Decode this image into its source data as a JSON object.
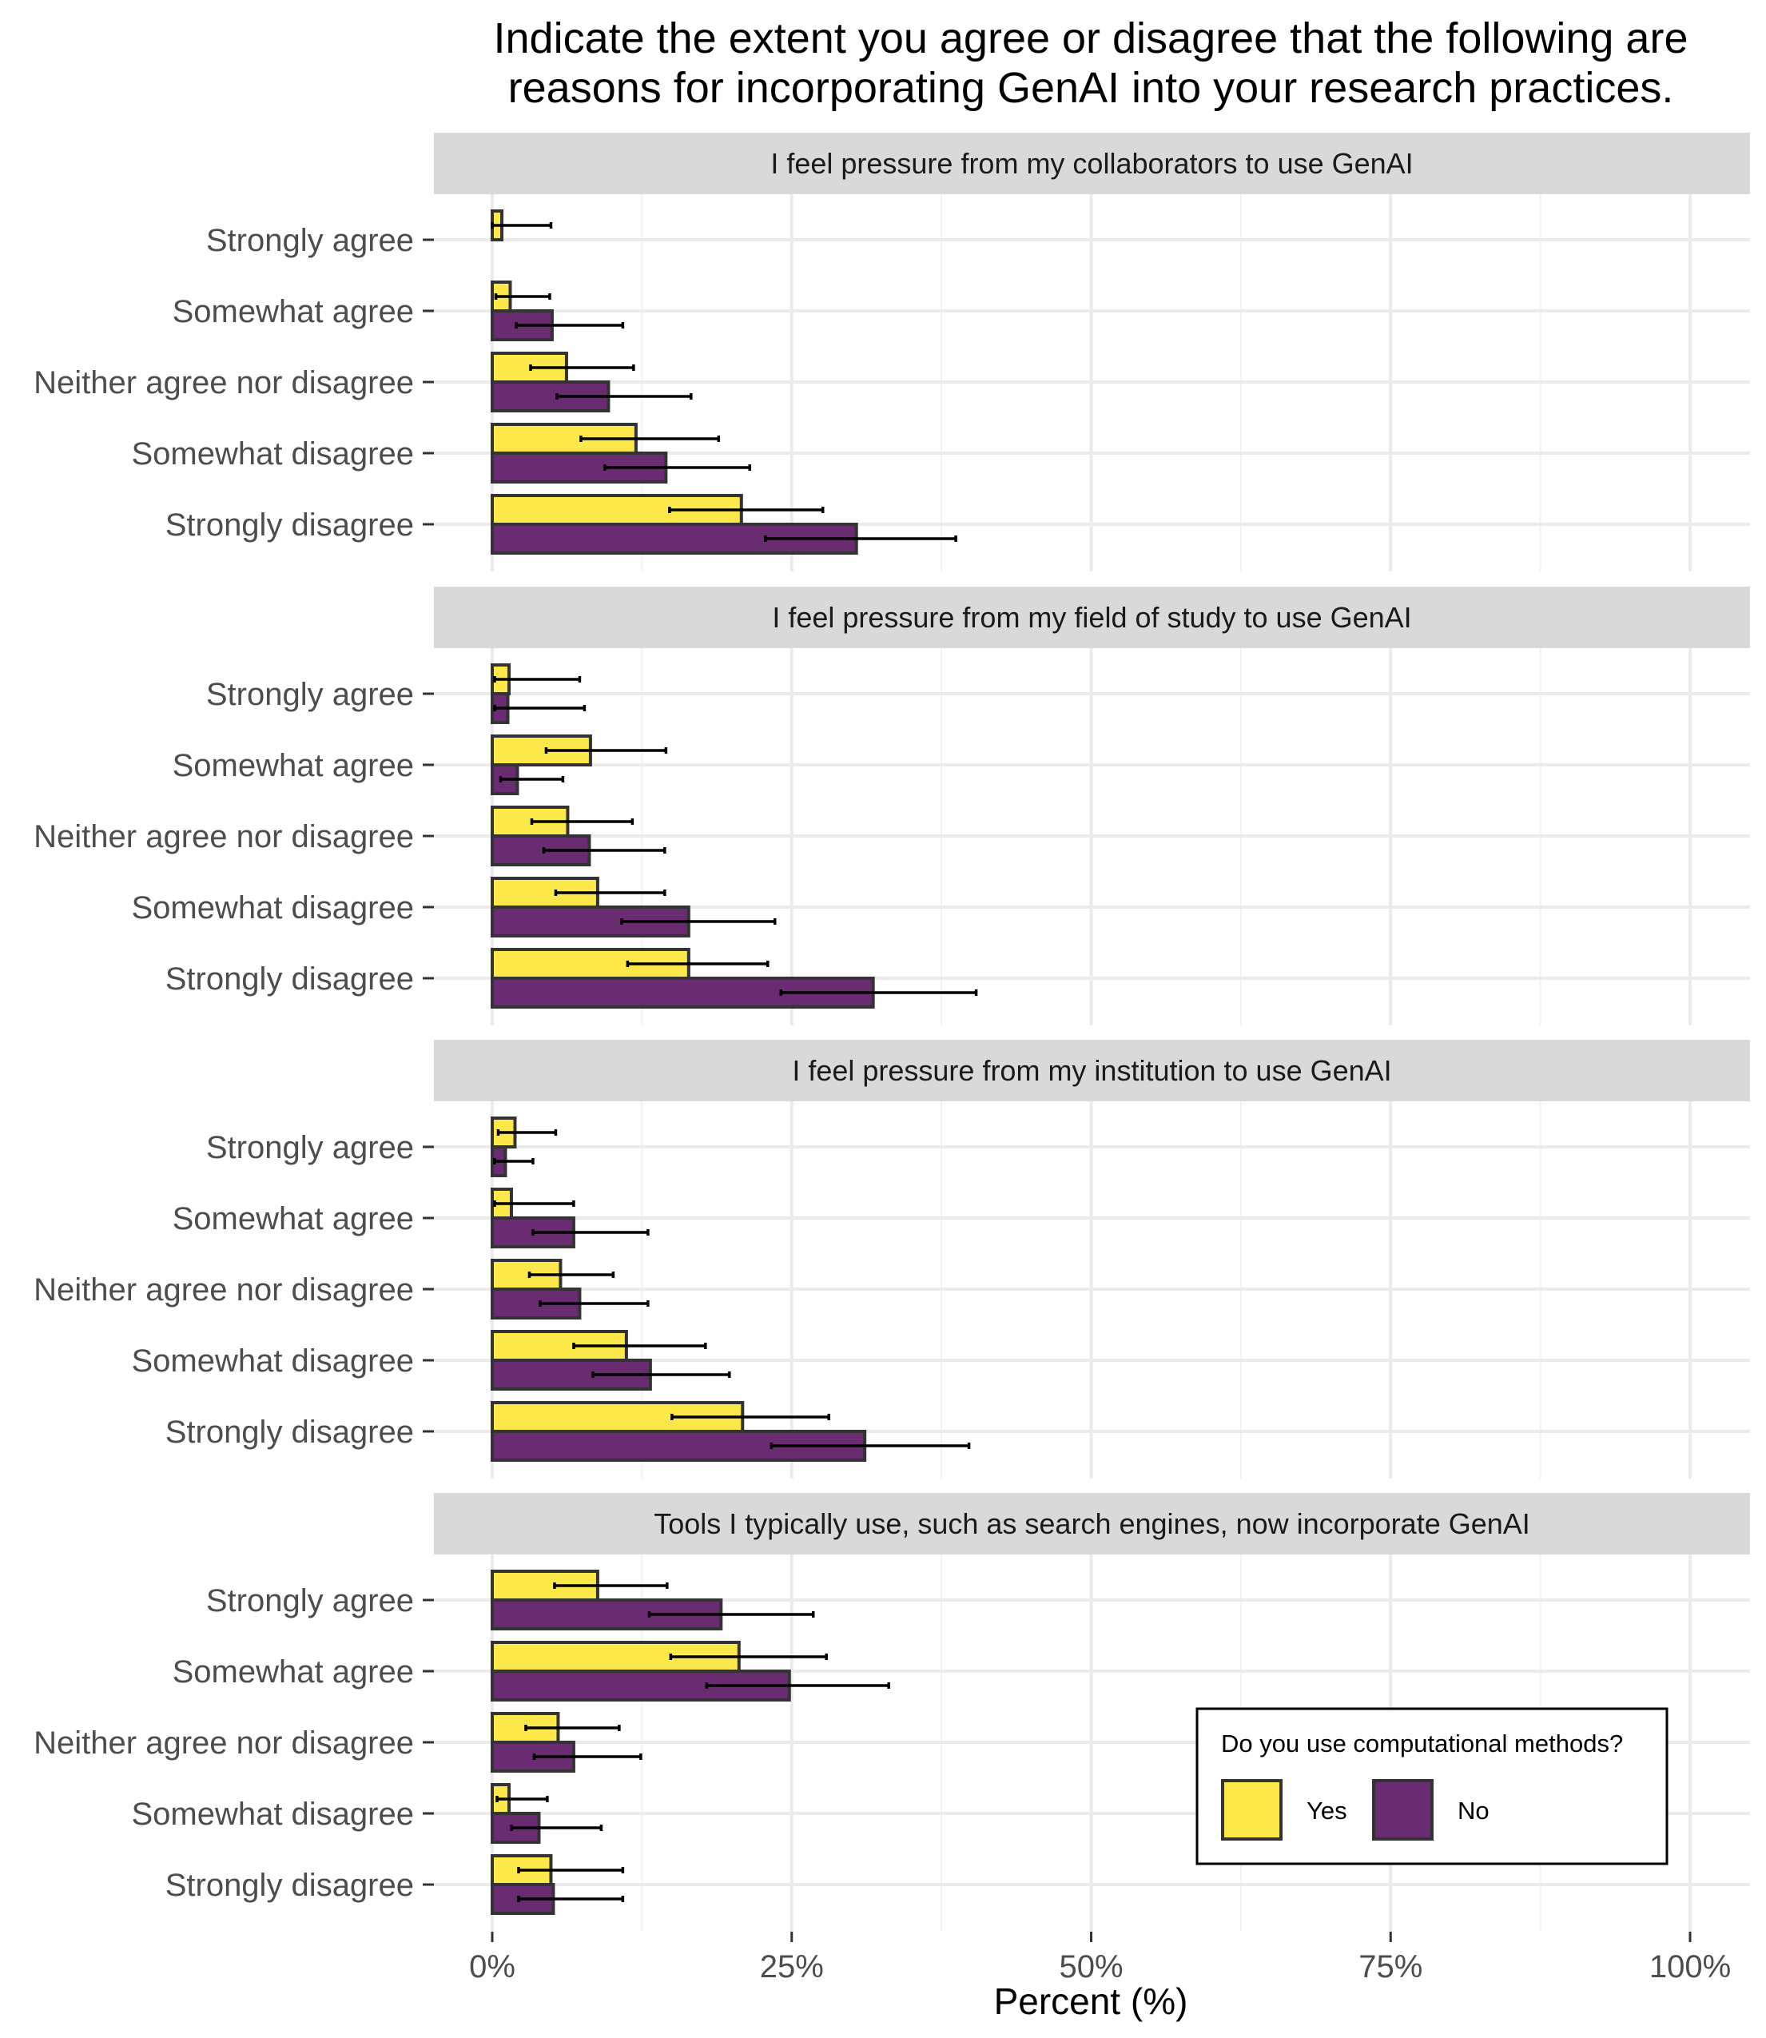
{
  "chart_data": {
    "type": "bar",
    "orientation": "horizontal",
    "title": "Indicate the extent you agree or disagree that the following are reasons for incorporating GenAI into your research practices.",
    "title_lines": [
      "Indicate the extent you agree or disagree that the following are",
      "reasons for incorporating GenAI into your research practices."
    ],
    "xlabel": "Percent (%)",
    "ylabel": "",
    "xlim": [
      -10,
      105
    ],
    "x_ticks": [
      0,
      25,
      50,
      75,
      100
    ],
    "x_tick_labels": [
      "0%",
      "25%",
      "50%",
      "75%",
      "100%"
    ],
    "categories": [
      "Strongly agree",
      "Somewhat agree",
      "Neither agree nor disagree",
      "Somewhat disagree",
      "Strongly disagree"
    ],
    "legend": {
      "title": "Do you use computational methods?",
      "entries": [
        "Yes",
        "No"
      ],
      "colors": [
        "#FDE84A",
        "#6A2C70"
      ],
      "position": "bottom-right"
    },
    "facets": [
      {
        "strip": "I feel pressure from my collaborators to use GenAI",
        "series": [
          {
            "name": "Yes",
            "values": [
              0.8,
              1.5,
              6.2,
              12.0,
              20.8
            ],
            "ci_low": [
              0,
              0.3,
              3.2,
              7.4,
              14.8
            ],
            "ci_high": [
              4.9,
              4.8,
              11.8,
              18.9,
              27.6
            ]
          },
          {
            "name": "No",
            "values": [
              0,
              5.0,
              9.7,
              14.5,
              30.4
            ],
            "ci_low": [
              0,
              2.0,
              5.4,
              9.4,
              22.8
            ],
            "ci_high": [
              0,
              10.9,
              16.6,
              21.5,
              38.7
            ]
          }
        ]
      },
      {
        "strip": "I feel pressure from my field of study to use GenAI",
        "series": [
          {
            "name": "Yes",
            "values": [
              1.4,
              8.2,
              6.3,
              8.8,
              16.4
            ],
            "ci_low": [
              0.2,
              4.5,
              3.3,
              5.3,
              11.3
            ],
            "ci_high": [
              7.3,
              14.5,
              11.7,
              14.4,
              23.0
            ]
          },
          {
            "name": "No",
            "values": [
              1.3,
              2.1,
              8.1,
              16.4,
              31.8
            ],
            "ci_low": [
              0.2,
              0.7,
              4.3,
              10.8,
              24.1
            ],
            "ci_high": [
              7.7,
              5.9,
              14.4,
              23.6,
              40.4
            ]
          }
        ]
      },
      {
        "strip": "I feel pressure from my institution to use GenAI",
        "series": [
          {
            "name": "Yes",
            "values": [
              1.9,
              1.6,
              5.7,
              11.2,
              20.9
            ],
            "ci_low": [
              0.5,
              0.2,
              3.1,
              6.8,
              15.0
            ],
            "ci_high": [
              5.3,
              6.8,
              10.1,
              17.8,
              28.1
            ]
          },
          {
            "name": "No",
            "values": [
              1.1,
              6.8,
              7.3,
              13.2,
              31.1
            ],
            "ci_low": [
              0.2,
              3.4,
              4.0,
              8.4,
              23.3
            ],
            "ci_high": [
              3.4,
              13.0,
              13.0,
              19.8,
              39.8
            ]
          }
        ]
      },
      {
        "strip": "Tools I typically use, such as search engines, now incorporate GenAI",
        "series": [
          {
            "name": "Yes",
            "values": [
              8.8,
              20.6,
              5.5,
              1.4,
              4.9
            ],
            "ci_low": [
              5.2,
              14.9,
              2.8,
              0.4,
              2.2
            ],
            "ci_high": [
              14.6,
              27.9,
              10.6,
              4.6,
              10.9
            ]
          },
          {
            "name": "No",
            "values": [
              19.1,
              24.8,
              6.8,
              3.9,
              5.1
            ],
            "ci_low": [
              13.1,
              17.9,
              3.5,
              1.6,
              2.2
            ],
            "ci_high": [
              26.8,
              33.1,
              12.4,
              9.1,
              10.9
            ]
          }
        ]
      }
    ]
  }
}
